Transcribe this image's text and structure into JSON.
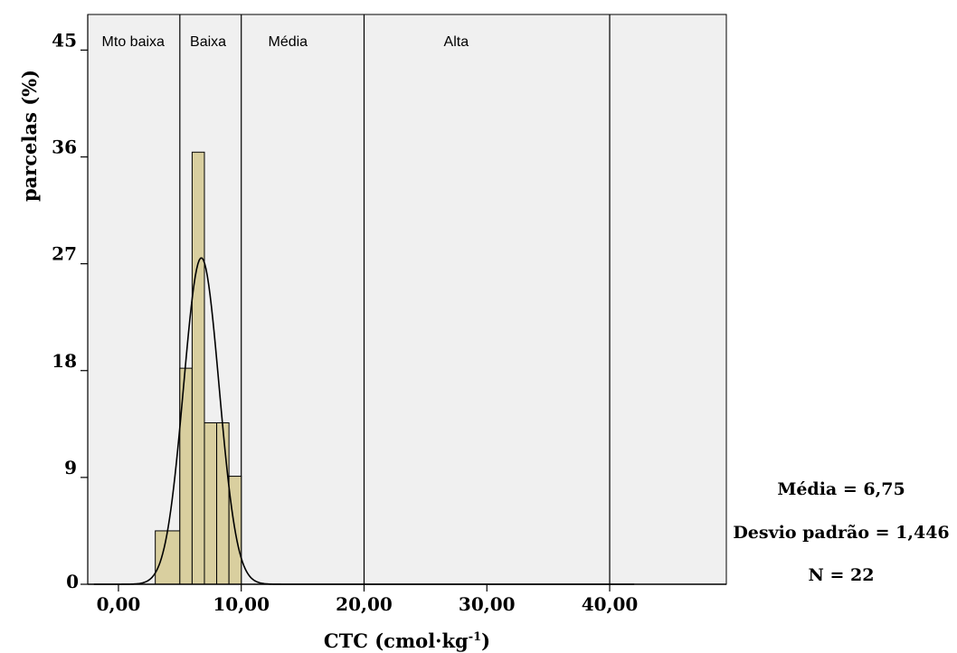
{
  "chart_data": {
    "type": "bar",
    "subtype": "histogram",
    "xlabel": "CTC (cmol·kg",
    "xlabel_sup": "-1",
    "xlabel_end": ")",
    "ylabel": "parcelas (%)",
    "xlim": [
      -2.5,
      49.5
    ],
    "ylim": [
      0,
      48
    ],
    "x_ticks": [
      {
        "value": 0,
        "label": "0,00"
      },
      {
        "value": 10,
        "label": "10,00"
      },
      {
        "value": 20,
        "label": "20,00"
      },
      {
        "value": 30,
        "label": "30,00"
      },
      {
        "value": 40,
        "label": "40,00"
      }
    ],
    "y_ticks": [
      {
        "value": 0,
        "label": "0",
        "small": true
      },
      {
        "value": 9,
        "label": "9"
      },
      {
        "value": 18,
        "label": "18"
      },
      {
        "value": 27,
        "label": "27"
      },
      {
        "value": 36,
        "label": "36"
      },
      {
        "value": 45,
        "label": "45"
      }
    ],
    "bins": [
      {
        "from": 3.0,
        "to": 5.0,
        "value": 4.5
      },
      {
        "from": 5.0,
        "to": 6.0,
        "value": 18.2
      },
      {
        "from": 6.0,
        "to": 7.0,
        "value": 36.4
      },
      {
        "from": 7.0,
        "to": 8.0,
        "value": 13.6
      },
      {
        "from": 8.0,
        "to": 9.0,
        "value": 13.6
      },
      {
        "from": 9.0,
        "to": 10.0,
        "value": 9.1
      }
    ],
    "bar_color": "#d9cf9f",
    "plot_background": "#f0f0f0",
    "normal_curve": {
      "mean": 6.75,
      "sd": 1.446,
      "peak": 27.5,
      "x_from": -2.0,
      "x_to": 42.0
    },
    "class_boundaries": [
      5,
      10,
      20,
      40
    ],
    "class_bands": [
      {
        "label": "Mto baixa",
        "at": 1.2
      },
      {
        "label": "Baixa",
        "at": 7.3
      },
      {
        "label": "Média",
        "at": 13.8
      },
      {
        "label": "Alta",
        "at": 27.5
      }
    ],
    "stats": {
      "mean_label": "Média = 6,75",
      "sd_label": "Desvio padrão = 1,446",
      "n_label": "N = 22"
    }
  }
}
